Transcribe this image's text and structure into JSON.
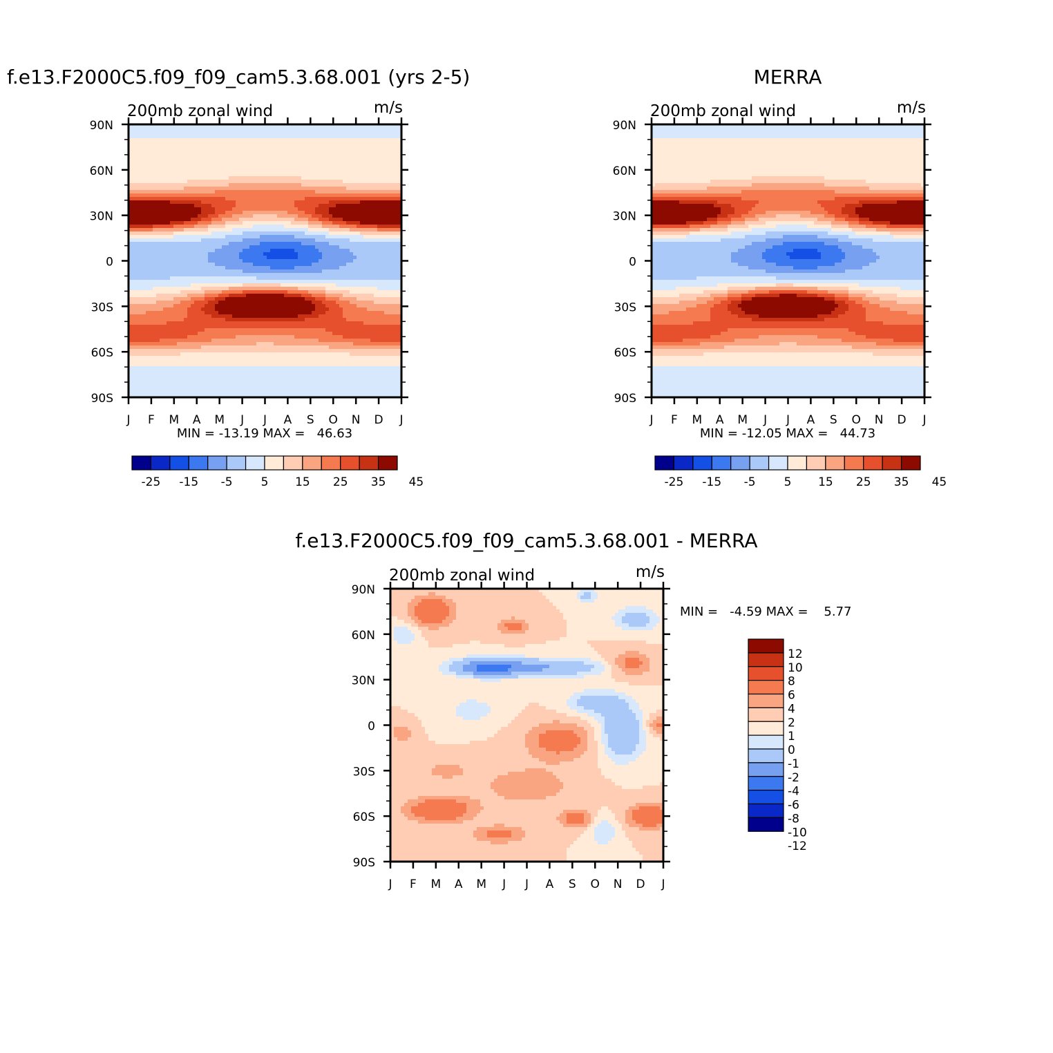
{
  "colors": {
    "palette14": [
      "#00008c",
      "#0a28c8",
      "#1450e6",
      "#3c78f0",
      "#78a0f0",
      "#aac8f8",
      "#d7e8fc",
      "#ffebd7",
      "#ffcdb4",
      "#faa582",
      "#f57a50",
      "#e6502d",
      "#c83214",
      "#8c0a00"
    ],
    "palette16": [
      "#00008c",
      "#0a28c8",
      "#1450e6",
      "#3c78f0",
      "#78a0f0",
      "#aac8f8",
      "#d7e8fc",
      "#ffebd7",
      "#ffcdb4",
      "#faa582",
      "#f57a50",
      "#e6502d",
      "#c83214",
      "#8c0a00"
    ]
  },
  "panels": {
    "model": {
      "title": "f.e13.F2000C5.f09_f09_cam5.3.68.001 (yrs 2-5)",
      "left_label": "200mb zonal wind",
      "right_label": "m/s",
      "stats": "MIN = -13.19 MAX =   46.63",
      "colorbar_labels": [
        "-25",
        "-15",
        "-5",
        "5",
        "15",
        "25",
        "35",
        "45"
      ]
    },
    "merra": {
      "title": "MERRA",
      "left_label": "200mb zonal wind",
      "right_label": "m/s",
      "stats": "MIN = -12.05 MAX =   44.73",
      "colorbar_labels": [
        "-25",
        "-15",
        "-5",
        "5",
        "15",
        "25",
        "35",
        "45"
      ]
    },
    "diff": {
      "title": "f.e13.F2000C5.f09_f09_cam5.3.68.001 - MERRA",
      "left_label": "200mb zonal wind",
      "right_label": "m/s",
      "stats": "MIN =   -4.59 MAX =    5.77",
      "colorbar_labels": [
        "12",
        "10",
        "8",
        "6",
        "4",
        "2",
        "1",
        "0",
        "-1",
        "-2",
        "-4",
        "-6",
        "-8",
        "-10",
        "-12"
      ]
    }
  },
  "chart_data": [
    {
      "type": "heatmap",
      "title": "f.e13.F2000C5.f09_f09_cam5.3.68.001 (yrs 2-5)",
      "subtitle": "200mb zonal wind",
      "units": "m/s",
      "x_ticks": [
        "J",
        "F",
        "M",
        "A",
        "M",
        "J",
        "J",
        "A",
        "S",
        "O",
        "N",
        "D",
        "J"
      ],
      "y_ticks": [
        "90N",
        "60N",
        "30N",
        "0",
        "30S",
        "60S",
        "90S"
      ],
      "levels": [
        -30,
        -25,
        -20,
        -15,
        -10,
        -5,
        0,
        5,
        10,
        15,
        20,
        25,
        30,
        35,
        40,
        45,
        50
      ],
      "min": -13.19,
      "max": 46.63,
      "features": [
        {
          "name": "NH jet",
          "lat": 30,
          "month": "Jan",
          "value": 46
        },
        {
          "name": "NH jet",
          "lat": 30,
          "month": "Dec",
          "value": 40
        },
        {
          "name": "SH jet",
          "lat": -30,
          "month": "Jul",
          "value": 38
        },
        {
          "name": "SH jet",
          "lat": -50,
          "month": "Jan",
          "value": 30
        },
        {
          "name": "Tropical easterlies",
          "lat": 5,
          "month": "Jul",
          "value": -13
        }
      ]
    },
    {
      "type": "heatmap",
      "title": "MERRA",
      "subtitle": "200mb zonal wind",
      "units": "m/s",
      "x_ticks": [
        "J",
        "F",
        "M",
        "A",
        "M",
        "J",
        "J",
        "A",
        "S",
        "O",
        "N",
        "D",
        "J"
      ],
      "y_ticks": [
        "90N",
        "60N",
        "30N",
        "0",
        "30S",
        "60S",
        "90S"
      ],
      "levels": [
        -30,
        -25,
        -20,
        -15,
        -10,
        -5,
        0,
        5,
        10,
        15,
        20,
        25,
        30,
        35,
        40,
        45,
        50
      ],
      "min": -12.05,
      "max": 44.73,
      "features": [
        {
          "name": "NH jet",
          "lat": 30,
          "month": "Jan",
          "value": 42
        },
        {
          "name": "NH jet",
          "lat": 30,
          "month": "Dec",
          "value": 40
        },
        {
          "name": "SH jet",
          "lat": -28,
          "month": "Jul",
          "value": 38
        },
        {
          "name": "SH jet",
          "lat": -50,
          "month": "Jan",
          "value": 28
        },
        {
          "name": "Tropical easterlies",
          "lat": 5,
          "month": "Jul",
          "value": -12
        }
      ]
    },
    {
      "type": "heatmap",
      "title": "f.e13.F2000C5.f09_f09_cam5.3.68.001 - MERRA",
      "subtitle": "200mb zonal wind",
      "units": "m/s",
      "x_ticks": [
        "J",
        "F",
        "M",
        "A",
        "M",
        "J",
        "J",
        "A",
        "S",
        "O",
        "N",
        "D",
        "J"
      ],
      "y_ticks": [
        "90N",
        "60N",
        "30N",
        "0",
        "30S",
        "60S",
        "90S"
      ],
      "levels": [
        -14,
        -12,
        -10,
        -8,
        -6,
        -4,
        -2,
        -1,
        0,
        1,
        2,
        4,
        6,
        8,
        10,
        12,
        14
      ],
      "min": -4.59,
      "max": 5.77
    }
  ]
}
